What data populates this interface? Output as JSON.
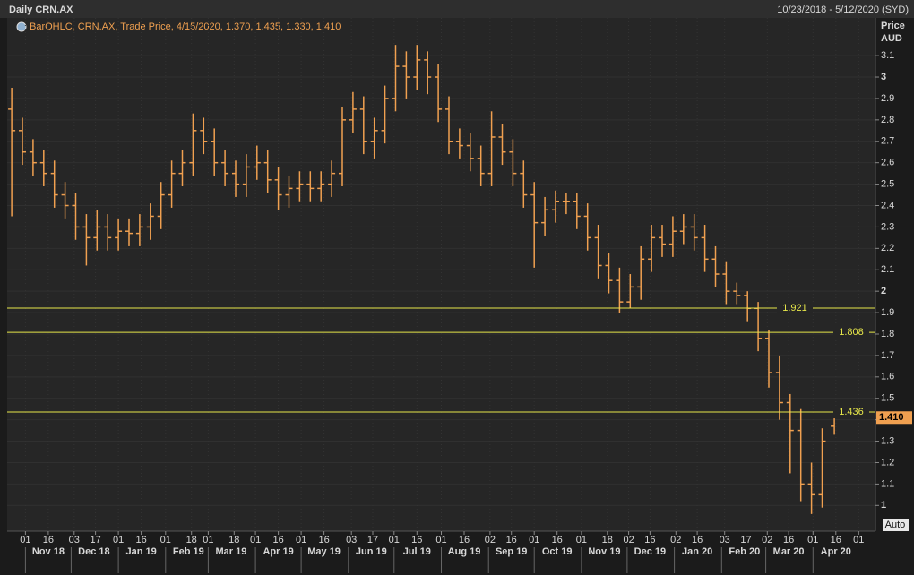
{
  "chart_data": {
    "type": "ohlc",
    "title": "Daily CRN.AX",
    "date_range": "10/23/2018 - 5/12/2020 (SYD)",
    "legend": "BarOHLC, CRN.AX, Trade Price, 4/15/2020, 1.370, 1.435, 1.330, 1.410",
    "y_axis_title": "Price",
    "y_axis_unit": "AUD",
    "auto_button": "Auto",
    "color": "#f0a050",
    "x": [
      "2018-10-23",
      "2018-10-30",
      "2018-11-06",
      "2018-11-13",
      "2018-11-20",
      "2018-11-27",
      "2018-12-04",
      "2018-12-11",
      "2018-12-18",
      "2018-12-25",
      "2019-01-01",
      "2019-01-08",
      "2019-01-15",
      "2019-01-22",
      "2019-01-29",
      "2019-02-05",
      "2019-02-12",
      "2019-02-19",
      "2019-02-26",
      "2019-03-05",
      "2019-03-12",
      "2019-03-19",
      "2019-03-26",
      "2019-04-02",
      "2019-04-09",
      "2019-04-16",
      "2019-04-23",
      "2019-04-30",
      "2019-05-07",
      "2019-05-14",
      "2019-05-21",
      "2019-05-28",
      "2019-06-04",
      "2019-06-11",
      "2019-06-18",
      "2019-06-25",
      "2019-07-02",
      "2019-07-09",
      "2019-07-16",
      "2019-07-23",
      "2019-07-30",
      "2019-08-06",
      "2019-08-13",
      "2019-08-20",
      "2019-08-27",
      "2019-09-03",
      "2019-09-10",
      "2019-09-17",
      "2019-09-24",
      "2019-10-01",
      "2019-10-08",
      "2019-10-15",
      "2019-10-22",
      "2019-10-29",
      "2019-11-05",
      "2019-11-12",
      "2019-11-19",
      "2019-11-26",
      "2019-12-03",
      "2019-12-10",
      "2019-12-17",
      "2019-12-24",
      "2019-12-31",
      "2020-01-07",
      "2020-01-14",
      "2020-01-21",
      "2020-01-28",
      "2020-02-04",
      "2020-02-11",
      "2020-02-18",
      "2020-02-25",
      "2020-03-03",
      "2020-03-10",
      "2020-03-17",
      "2020-03-24",
      "2020-03-31",
      "2020-04-07",
      "2020-04-15"
    ],
    "open": [
      2.85,
      2.75,
      2.65,
      2.6,
      2.55,
      2.45,
      2.4,
      2.3,
      2.25,
      2.3,
      2.25,
      2.28,
      2.27,
      2.3,
      2.35,
      2.45,
      2.55,
      2.6,
      2.75,
      2.7,
      2.6,
      2.55,
      2.5,
      2.58,
      2.6,
      2.52,
      2.45,
      2.48,
      2.5,
      2.48,
      2.5,
      2.55,
      2.8,
      2.85,
      2.7,
      2.75,
      2.9,
      3.05,
      3.0,
      3.08,
      3.0,
      2.85,
      2.7,
      2.68,
      2.62,
      2.55,
      2.72,
      2.65,
      2.55,
      2.45,
      2.32,
      2.38,
      2.42,
      2.42,
      2.35,
      2.25,
      2.12,
      2.05,
      1.95,
      2.02,
      2.15,
      2.25,
      2.22,
      2.28,
      2.3,
      2.25,
      2.15,
      2.08,
      2.0,
      1.98,
      1.92,
      1.78,
      1.62,
      1.48,
      1.35,
      1.1,
      1.05,
      1.37
    ],
    "high": [
      2.95,
      2.81,
      2.71,
      2.66,
      2.61,
      2.51,
      2.46,
      2.36,
      2.38,
      2.36,
      2.34,
      2.34,
      2.36,
      2.41,
      2.51,
      2.61,
      2.66,
      2.83,
      2.81,
      2.76,
      2.66,
      2.61,
      2.64,
      2.68,
      2.66,
      2.58,
      2.54,
      2.56,
      2.56,
      2.56,
      2.61,
      2.86,
      2.93,
      2.91,
      2.81,
      2.96,
      3.15,
      3.12,
      3.15,
      3.12,
      3.06,
      2.91,
      2.76,
      2.74,
      2.68,
      2.84,
      2.78,
      2.71,
      2.61,
      2.51,
      2.44,
      2.47,
      2.46,
      2.46,
      2.41,
      2.31,
      2.18,
      2.11,
      2.08,
      2.21,
      2.31,
      2.31,
      2.35,
      2.36,
      2.36,
      2.31,
      2.21,
      2.14,
      2.04,
      2.0,
      1.95,
      1.82,
      1.7,
      1.52,
      1.45,
      1.2,
      1.36,
      1.435
    ],
    "low": [
      2.35,
      2.59,
      2.54,
      2.49,
      2.39,
      2.34,
      2.24,
      2.12,
      2.19,
      2.19,
      2.19,
      2.21,
      2.21,
      2.24,
      2.29,
      2.39,
      2.49,
      2.54,
      2.64,
      2.54,
      2.49,
      2.44,
      2.44,
      2.52,
      2.46,
      2.38,
      2.39,
      2.42,
      2.42,
      2.42,
      2.44,
      2.49,
      2.74,
      2.64,
      2.62,
      2.69,
      2.84,
      2.9,
      2.94,
      2.92,
      2.79,
      2.64,
      2.62,
      2.56,
      2.49,
      2.49,
      2.59,
      2.49,
      2.39,
      2.11,
      2.26,
      2.32,
      2.36,
      2.29,
      2.19,
      2.06,
      1.99,
      1.9,
      1.92,
      1.96,
      2.09,
      2.16,
      2.16,
      2.22,
      2.19,
      2.09,
      2.02,
      1.94,
      1.94,
      1.86,
      1.72,
      1.55,
      1.4,
      1.15,
      1.02,
      0.96,
      0.99,
      1.33
    ],
    "close": [
      2.75,
      2.65,
      2.6,
      2.55,
      2.45,
      2.4,
      2.3,
      2.25,
      2.3,
      2.25,
      2.28,
      2.27,
      2.3,
      2.35,
      2.45,
      2.55,
      2.6,
      2.75,
      2.7,
      2.6,
      2.55,
      2.5,
      2.58,
      2.6,
      2.52,
      2.45,
      2.48,
      2.5,
      2.48,
      2.5,
      2.55,
      2.8,
      2.85,
      2.7,
      2.75,
      2.9,
      3.05,
      3.0,
      3.08,
      3.0,
      2.85,
      2.7,
      2.68,
      2.62,
      2.55,
      2.72,
      2.65,
      2.55,
      2.45,
      2.32,
      2.38,
      2.42,
      2.42,
      2.35,
      2.25,
      2.12,
      2.05,
      1.95,
      2.02,
      2.15,
      2.25,
      2.22,
      2.28,
      2.3,
      2.25,
      2.15,
      2.08,
      2.0,
      1.98,
      1.92,
      1.78,
      1.62,
      1.48,
      1.35,
      1.1,
      1.05,
      1.3,
      1.41
    ],
    "hlines": [
      1.921,
      1.808,
      1.436
    ],
    "hline_color": "#e6e64a",
    "last_price": {
      "value": 1.41,
      "label": "1.410"
    },
    "xlim": [
      "2018-10-20",
      "2020-05-12"
    ],
    "ylim": [
      0.88,
      3.205
    ],
    "yticks": [
      1,
      1.1,
      1.2,
      1.3,
      1.4,
      1.5,
      1.6,
      1.7,
      1.8,
      1.9,
      2,
      2.1,
      2.2,
      2.3,
      2.4,
      2.5,
      2.6,
      2.7,
      2.8,
      2.9,
      3,
      3.1
    ],
    "xticks": [
      {
        "value": "2018-11-01",
        "label": "01"
      },
      {
        "value": "2018-11-16",
        "label": "16"
      },
      {
        "value": "2018-12-03",
        "label": "03"
      },
      {
        "value": "2018-12-17",
        "label": "17"
      },
      {
        "value": "2019-01-01",
        "label": "01"
      },
      {
        "value": "2019-01-16",
        "label": "16"
      },
      {
        "value": "2019-02-01",
        "label": "01"
      },
      {
        "value": "2019-02-18",
        "label": "18"
      },
      {
        "value": "2019-03-01",
        "label": "01"
      },
      {
        "value": "2019-03-18",
        "label": "18"
      },
      {
        "value": "2019-04-01",
        "label": "01"
      },
      {
        "value": "2019-04-16",
        "label": "16"
      },
      {
        "value": "2019-05-01",
        "label": "01"
      },
      {
        "value": "2019-05-16",
        "label": "16"
      },
      {
        "value": "2019-06-03",
        "label": "03"
      },
      {
        "value": "2019-06-17",
        "label": "17"
      },
      {
        "value": "2019-07-01",
        "label": "01"
      },
      {
        "value": "2019-07-16",
        "label": "16"
      },
      {
        "value": "2019-08-01",
        "label": "01"
      },
      {
        "value": "2019-08-16",
        "label": "16"
      },
      {
        "value": "2019-09-02",
        "label": "02"
      },
      {
        "value": "2019-09-16",
        "label": "16"
      },
      {
        "value": "2019-10-01",
        "label": "01"
      },
      {
        "value": "2019-10-16",
        "label": "16"
      },
      {
        "value": "2019-11-01",
        "label": "01"
      },
      {
        "value": "2019-11-18",
        "label": "18"
      },
      {
        "value": "2019-12-02",
        "label": "02"
      },
      {
        "value": "2019-12-16",
        "label": "16"
      },
      {
        "value": "2020-01-02",
        "label": "02"
      },
      {
        "value": "2020-01-16",
        "label": "16"
      },
      {
        "value": "2020-02-03",
        "label": "03"
      },
      {
        "value": "2020-02-17",
        "label": "17"
      },
      {
        "value": "2020-03-02",
        "label": "02"
      },
      {
        "value": "2020-03-16",
        "label": "16"
      },
      {
        "value": "2020-04-01",
        "label": "01"
      },
      {
        "value": "2020-04-16",
        "label": "16"
      },
      {
        "value": "2020-05-01",
        "label": "01"
      }
    ],
    "xmonths": [
      {
        "value": "2018-11",
        "label": "Nov 18"
      },
      {
        "value": "2018-12",
        "label": "Dec 18"
      },
      {
        "value": "2019-01",
        "label": "Jan 19"
      },
      {
        "value": "2019-02",
        "label": "Feb 19"
      },
      {
        "value": "2019-03",
        "label": "Mar 19"
      },
      {
        "value": "2019-04",
        "label": "Apr 19"
      },
      {
        "value": "2019-05",
        "label": "May 19"
      },
      {
        "value": "2019-06",
        "label": "Jun 19"
      },
      {
        "value": "2019-07",
        "label": "Jul 19"
      },
      {
        "value": "2019-08",
        "label": "Aug 19"
      },
      {
        "value": "2019-09",
        "label": "Sep 19"
      },
      {
        "value": "2019-10",
        "label": "Oct 19"
      },
      {
        "value": "2019-11",
        "label": "Nov 19"
      },
      {
        "value": "2019-12",
        "label": "Dec 19"
      },
      {
        "value": "2020-01",
        "label": "Jan 20"
      },
      {
        "value": "2020-02",
        "label": "Feb 20"
      },
      {
        "value": "2020-03",
        "label": "Mar 20"
      },
      {
        "value": "2020-04",
        "label": "Apr 20"
      }
    ],
    "grid": true
  }
}
